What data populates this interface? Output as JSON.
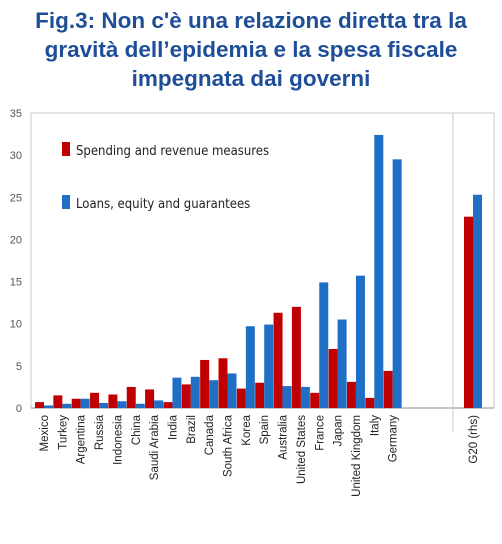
{
  "title_lines": [
    "Fig.3: Non c'è una relazione diretta tra la",
    "gravità dell’epidemia e la spesa fiscale",
    "impegnata dai governi"
  ],
  "colors": {
    "title": "#1f4e98",
    "spending": "#c00000",
    "loans": "#1f6fc5"
  },
  "chart_data": {
    "type": "bar",
    "categories": [
      "Mexico",
      "Turkey",
      "Argentina",
      "Russia",
      "Indonesia",
      "China",
      "Saudi Arabia",
      "India",
      "Brazil",
      "Canada",
      "South Africa",
      "Korea",
      "Spain",
      "Australia",
      "United States",
      "France",
      "Japan",
      "United Kingdom",
      "Italy",
      "Germany",
      "G20 (rhs)"
    ],
    "series": [
      {
        "name": "Spending and revenue measures",
        "values": [
          0.7,
          1.5,
          1.1,
          1.8,
          1.6,
          2.5,
          2.2,
          0.7,
          2.8,
          5.7,
          5.9,
          2.3,
          3.0,
          11.3,
          12.0,
          1.8,
          7.0,
          3.1,
          1.2,
          4.4,
          22.7
        ]
      },
      {
        "name": "Loans, equity and guarantees",
        "values": [
          0.3,
          0.5,
          1.1,
          0.6,
          0.8,
          0.5,
          0.9,
          3.6,
          3.7,
          3.3,
          4.1,
          9.7,
          9.9,
          2.6,
          2.5,
          14.9,
          10.5,
          15.7,
          32.4,
          29.5,
          25.3
        ]
      }
    ],
    "yticks": [
      "0",
      "5",
      "10",
      "15",
      "20",
      "25",
      "30",
      "35"
    ],
    "ylim": [
      0,
      35
    ],
    "separator_before": "G20 (rhs)",
    "legend": "top-left, inside plot"
  }
}
